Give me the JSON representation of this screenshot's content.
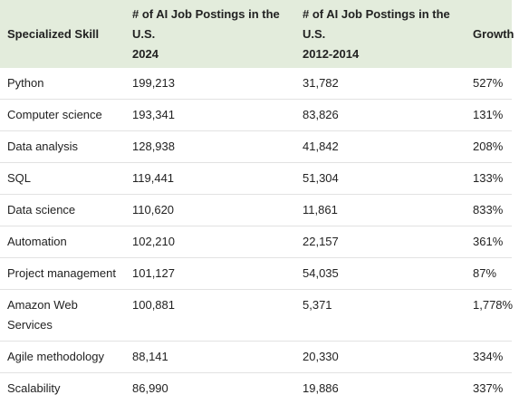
{
  "table": {
    "headers": {
      "skill": "Specialized Skill",
      "postings_2024_line1": "# of AI Job Postings in the",
      "postings_2024_line2": "U.S.",
      "postings_2024_line3": "2024",
      "postings_2012_line1": "# of AI Job Postings in the",
      "postings_2012_line2": "U.S.",
      "postings_2012_line3": "2012-2014",
      "growth": "Growth"
    },
    "rows": [
      {
        "skill": "Python",
        "p2024": "199,213",
        "p2012": "31,782",
        "growth": "527%"
      },
      {
        "skill": "Computer science",
        "p2024": "193,341",
        "p2012": "83,826",
        "growth": "131%"
      },
      {
        "skill": "Data analysis",
        "p2024": "128,938",
        "p2012": "41,842",
        "growth": "208%"
      },
      {
        "skill": "SQL",
        "p2024": "119,441",
        "p2012": "51,304",
        "growth": "133%"
      },
      {
        "skill": "Data science",
        "p2024": "110,620",
        "p2012": "11,861",
        "growth": "833%"
      },
      {
        "skill": "Automation",
        "p2024": "102,210",
        "p2012": "22,157",
        "growth": "361%"
      },
      {
        "skill": "Project management",
        "p2024": "101,127",
        "p2012": "54,035",
        "growth": "87%"
      },
      {
        "skill": "Amazon Web Services",
        "p2024": "100,881",
        "p2012": "5,371",
        "growth": "1,778%"
      },
      {
        "skill": "Agile methodology",
        "p2024": "88,141",
        "p2012": "20,330",
        "growth": "334%"
      },
      {
        "skill": "Scalability",
        "p2024": "86,990",
        "p2012": "19,886",
        "growth": "337%"
      }
    ]
  }
}
